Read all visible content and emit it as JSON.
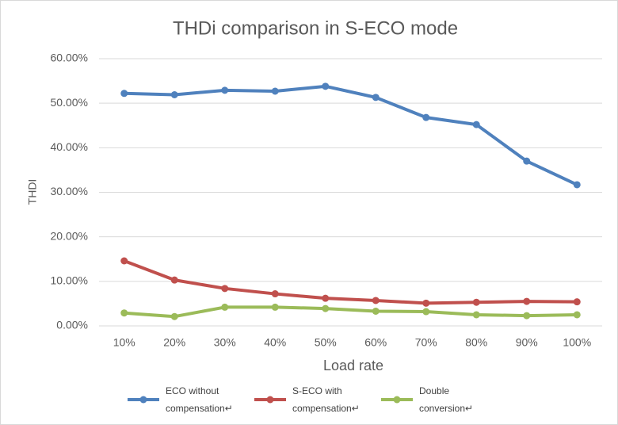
{
  "chart_data": {
    "type": "line",
    "title": "THDi comparison in S-ECO mode",
    "x_label": "Load rate",
    "y_label": "THDI",
    "categories": [
      "10%",
      "20%",
      "30%",
      "40%",
      "50%",
      "60%",
      "70%",
      "80%",
      "90%",
      "100%"
    ],
    "series": [
      {
        "name": "ECO without compensation↵",
        "color": "#4f81bd",
        "values": [
          52.2,
          51.9,
          52.9,
          52.7,
          53.8,
          51.3,
          46.8,
          45.2,
          37.0,
          31.7
        ]
      },
      {
        "name": "S-ECO with compensation↵",
        "color": "#c0504d",
        "values": [
          14.6,
          10.3,
          8.4,
          7.2,
          6.2,
          5.7,
          5.1,
          5.3,
          5.5,
          5.4
        ]
      },
      {
        "name": "Double conversion↵",
        "color": "#9bbb59",
        "values": [
          2.9,
          2.1,
          4.2,
          4.2,
          3.9,
          3.3,
          3.2,
          2.5,
          2.3,
          2.5
        ]
      }
    ],
    "ylim": [
      0,
      60
    ],
    "yticks": [
      {
        "value": 0,
        "label": "0.00%"
      },
      {
        "value": 10,
        "label": "10.00%"
      },
      {
        "value": 20,
        "label": "20.00%"
      },
      {
        "value": 30,
        "label": "30.00%"
      },
      {
        "value": 40,
        "label": "40.00%"
      },
      {
        "value": 50,
        "label": "50.00%"
      },
      {
        "value": 60,
        "label": "60.00%"
      }
    ],
    "grid": true,
    "legend": "bottom"
  }
}
